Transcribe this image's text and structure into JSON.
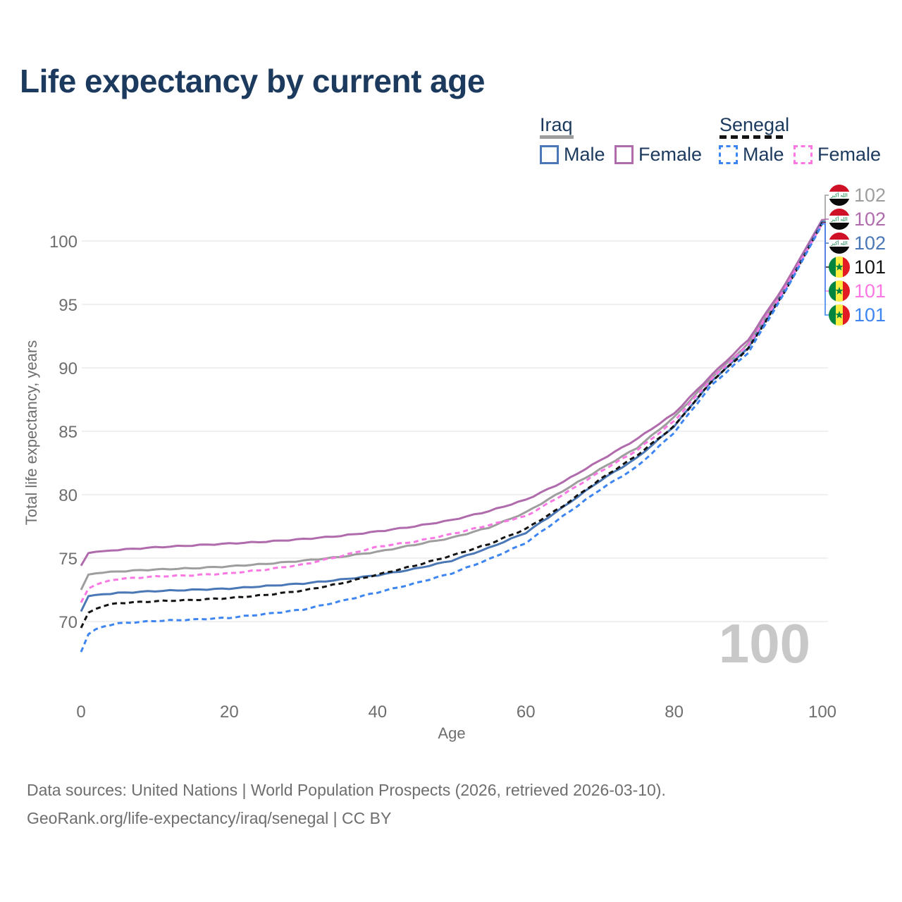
{
  "title": "Life expectancy by current age",
  "watermark": "100",
  "legend": {
    "position": "top-right",
    "groups": [
      {
        "country": "Iraq",
        "line_style": "solid",
        "underline_color": "#9e9e9e",
        "items": [
          {
            "label": "Male",
            "color": "#4a77b5",
            "dashed": false
          },
          {
            "label": "Female",
            "color": "#b06bac",
            "dashed": false
          }
        ]
      },
      {
        "country": "Senegal",
        "line_style": "dashed",
        "underline_color": "#141414",
        "items": [
          {
            "label": "Male",
            "color": "#3d85f1",
            "dashed": true
          },
          {
            "label": "Female",
            "color": "#fb78e4",
            "dashed": true
          }
        ]
      }
    ]
  },
  "chart_data": {
    "type": "line",
    "title": "Life expectancy by current age",
    "xlabel": "Age",
    "ylabel": "Total life expectancy, years",
    "xlim": [
      0,
      100
    ],
    "ylim": [
      67,
      102.5
    ],
    "xticks": [
      0,
      20,
      40,
      60,
      80,
      100
    ],
    "yticks": [
      70,
      75,
      80,
      85,
      90,
      95,
      100
    ],
    "grid": "horizontal",
    "gridline_color": "#ebebeb",
    "x": [
      0,
      1,
      2,
      3,
      4,
      5,
      10,
      15,
      20,
      25,
      30,
      35,
      40,
      45,
      50,
      55,
      60,
      65,
      70,
      75,
      80,
      85,
      90,
      95,
      100
    ],
    "series": [
      {
        "name": "Iraq Total",
        "country": "Iraq",
        "sex": "Total",
        "color": "#9e9e9e",
        "dashed": false,
        "flag": "iraq",
        "end_label": "102",
        "values": [
          72.5,
          73.7,
          73.8,
          73.85,
          73.9,
          73.95,
          74.1,
          74.2,
          74.35,
          74.55,
          74.8,
          75.1,
          75.5,
          76.05,
          76.6,
          77.4,
          78.6,
          80.3,
          82.0,
          83.7,
          86.1,
          89.2,
          91.9,
          96.4,
          101.65
        ]
      },
      {
        "name": "Iraq Female",
        "country": "Iraq",
        "sex": "Female",
        "color": "#b06bac",
        "dashed": false,
        "flag": "iraq",
        "end_label": "102",
        "values": [
          74.4,
          75.4,
          75.5,
          75.55,
          75.6,
          75.65,
          75.85,
          76.0,
          76.15,
          76.3,
          76.5,
          76.75,
          77.1,
          77.5,
          78.0,
          78.7,
          79.6,
          81.0,
          82.7,
          84.4,
          86.4,
          89.4,
          92.2,
          96.6,
          101.7
        ]
      },
      {
        "name": "Iraq Male",
        "country": "Iraq",
        "sex": "Male",
        "color": "#4a77b5",
        "dashed": false,
        "flag": "iraq",
        "end_label": "102",
        "values": [
          70.8,
          72.0,
          72.1,
          72.15,
          72.2,
          72.25,
          72.4,
          72.5,
          72.6,
          72.8,
          73.0,
          73.3,
          73.65,
          74.15,
          74.8,
          75.8,
          77.0,
          79.0,
          81.1,
          82.9,
          85.4,
          88.9,
          91.6,
          96.2,
          101.55
        ]
      },
      {
        "name": "Senegal Total",
        "country": "Senegal",
        "sex": "Total",
        "color": "#141414",
        "dashed": true,
        "flag": "senegal",
        "end_label": "101",
        "values": [
          69.5,
          70.7,
          71.0,
          71.2,
          71.35,
          71.45,
          71.6,
          71.7,
          71.85,
          72.1,
          72.45,
          73.0,
          73.7,
          74.4,
          75.2,
          76.1,
          77.3,
          79.1,
          81.2,
          83.1,
          85.4,
          88.9,
          91.5,
          96.1,
          101.45
        ]
      },
      {
        "name": "Senegal Female",
        "country": "Senegal",
        "sex": "Female",
        "color": "#fb78e4",
        "dashed": true,
        "flag": "senegal",
        "end_label": "101",
        "values": [
          71.5,
          72.6,
          72.9,
          73.1,
          73.25,
          73.35,
          73.55,
          73.65,
          73.8,
          74.1,
          74.5,
          75.15,
          75.9,
          76.3,
          76.9,
          77.6,
          78.3,
          80.0,
          81.8,
          83.5,
          85.8,
          89.1,
          91.8,
          96.3,
          101.4
        ]
      },
      {
        "name": "Senegal Male",
        "country": "Senegal",
        "sex": "Male",
        "color": "#3d85f1",
        "dashed": true,
        "flag": "senegal",
        "end_label": "101",
        "values": [
          67.6,
          69.0,
          69.4,
          69.6,
          69.75,
          69.85,
          70.05,
          70.15,
          70.3,
          70.6,
          70.95,
          71.6,
          72.3,
          73.0,
          73.8,
          74.9,
          76.2,
          78.3,
          80.4,
          82.2,
          84.9,
          88.6,
          91.2,
          96.0,
          101.35
        ]
      }
    ]
  },
  "footer": {
    "line1": "Data sources: United Nations | World Population Prospects (2026, retrieved 2026-03-10).",
    "line2": "GeoRank.org/life-expectancy/iraq/senegal | CC BY"
  }
}
